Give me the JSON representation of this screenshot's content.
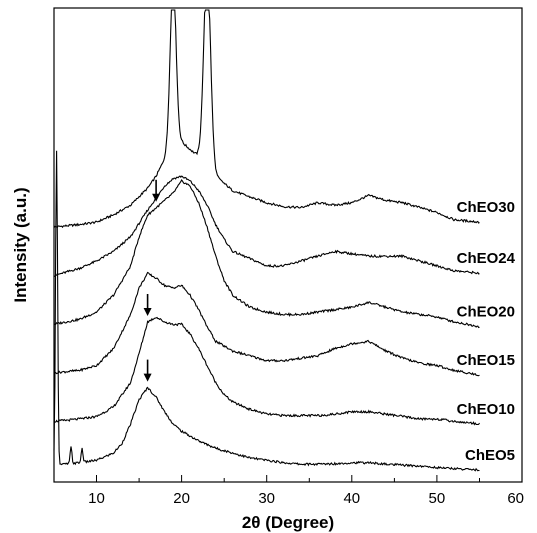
{
  "chart_data": {
    "type": "line",
    "xlabel": "2θ (Degree)",
    "ylabel": "Intensity (a.u.)",
    "xlim": [
      5,
      60
    ],
    "xticks": [
      "10",
      "20",
      "30",
      "40",
      "50",
      "60"
    ],
    "y_ticks_shown": false,
    "grid": false,
    "legend": "none (series labelled on the right of each trace)",
    "series": [
      {
        "name": "ChEO30",
        "offset": 5,
        "peaks": [
          [
            19,
            3.4,
            0.35
          ],
          [
            23,
            4.0,
            0.4
          ]
        ],
        "x": [
          5,
          8,
          10,
          12,
          14,
          16,
          17,
          18,
          19,
          20,
          21,
          22,
          23,
          24,
          26,
          28,
          30,
          32,
          34,
          36,
          38,
          40,
          42,
          44,
          46,
          48,
          50,
          52,
          55
        ],
        "y": [
          0,
          0.05,
          0.1,
          0.25,
          0.45,
          0.8,
          1.05,
          1.4,
          1.7,
          1.75,
          1.6,
          1.45,
          1.35,
          1.05,
          0.75,
          0.62,
          0.5,
          0.42,
          0.4,
          0.5,
          0.45,
          0.5,
          0.65,
          0.55,
          0.5,
          0.4,
          0.3,
          0.15,
          0.1
        ]
      },
      {
        "name": "ChEO24",
        "offset": 4,
        "peaks": [],
        "x": [
          5,
          8,
          10,
          12,
          14,
          16,
          17,
          18,
          19,
          20,
          21,
          22,
          23,
          24,
          25,
          26,
          28,
          30,
          32,
          34,
          36,
          38,
          40,
          42,
          44,
          46,
          48,
          50,
          52,
          55
        ],
        "y": [
          0,
          0.15,
          0.3,
          0.5,
          0.8,
          1.35,
          1.6,
          1.85,
          2.0,
          2.05,
          1.95,
          1.75,
          1.45,
          1.05,
          0.75,
          0.5,
          0.35,
          0.2,
          0.2,
          0.3,
          0.4,
          0.5,
          0.45,
          0.4,
          0.4,
          0.4,
          0.3,
          0.2,
          0.1,
          0.05
        ]
      },
      {
        "name": "ChEO20",
        "offset": 3,
        "peaks": [],
        "x": [
          5,
          8,
          10,
          12,
          14,
          15,
          16,
          17,
          18,
          19,
          20,
          21,
          22,
          23,
          24,
          25,
          26,
          28,
          30,
          32,
          34,
          36,
          38,
          40,
          42,
          44,
          46,
          48,
          50,
          52,
          55
        ],
        "y": [
          0,
          0.1,
          0.25,
          0.6,
          1.2,
          1.8,
          2.25,
          2.4,
          2.55,
          2.7,
          2.95,
          2.85,
          2.5,
          2.0,
          1.4,
          0.9,
          0.6,
          0.35,
          0.25,
          0.2,
          0.2,
          0.25,
          0.3,
          0.35,
          0.45,
          0.35,
          0.25,
          0.2,
          0.15,
          0.05,
          -0.05
        ]
      },
      {
        "name": "ChEO15",
        "offset": 2,
        "peaks": [],
        "x": [
          5,
          8,
          10,
          12,
          14,
          15,
          16,
          17,
          18,
          19,
          20,
          21,
          22,
          23,
          24,
          26,
          28,
          30,
          32,
          34,
          36,
          38,
          40,
          42,
          44,
          46,
          48,
          50,
          52,
          55
        ],
        "y": [
          0,
          0.05,
          0.15,
          0.5,
          1.2,
          1.75,
          2.05,
          1.95,
          1.8,
          1.75,
          1.8,
          1.6,
          1.3,
          0.95,
          0.65,
          0.45,
          0.35,
          0.25,
          0.25,
          0.3,
          0.35,
          0.5,
          0.6,
          0.65,
          0.45,
          0.3,
          0.2,
          0.15,
          0.05,
          -0.05
        ]
      },
      {
        "name": "ChEO10",
        "offset": 1,
        "peaks": [],
        "x": [
          5,
          8,
          10,
          12,
          14,
          15,
          16,
          17,
          18,
          19,
          20,
          21,
          22,
          23,
          24,
          25,
          26,
          28,
          30,
          32,
          34,
          36,
          38,
          40,
          42,
          44,
          46,
          48,
          50,
          52,
          55
        ],
        "y": [
          0,
          0.05,
          0.1,
          0.3,
          0.8,
          1.4,
          2.05,
          2.15,
          2.05,
          2.0,
          2.0,
          1.8,
          1.5,
          1.15,
          0.8,
          0.55,
          0.4,
          0.25,
          0.15,
          0.12,
          0.12,
          0.12,
          0.15,
          0.2,
          0.2,
          0.15,
          0.1,
          0.05,
          0.05,
          0,
          -0.05
        ]
      },
      {
        "name": "ChEO5",
        "offset": 0,
        "peaks": [
          [
            5.3,
            6.5,
            0.12
          ],
          [
            7.0,
            0.35,
            0.1
          ],
          [
            8.3,
            0.3,
            0.1
          ]
        ],
        "x": [
          5,
          8,
          10,
          12,
          13,
          14,
          15,
          16,
          17,
          18,
          19,
          20,
          22,
          24,
          26,
          28,
          30,
          32,
          34,
          36,
          38,
          40,
          42,
          44,
          46,
          48,
          50,
          52,
          55
        ],
        "y": [
          0.1,
          0.15,
          0.2,
          0.35,
          0.55,
          0.95,
          1.45,
          1.7,
          1.5,
          1.2,
          0.95,
          0.8,
          0.6,
          0.45,
          0.35,
          0.25,
          0.2,
          0.15,
          0.12,
          0.12,
          0.13,
          0.15,
          0.15,
          0.12,
          0.1,
          0.08,
          0.05,
          0.03,
          0
        ]
      }
    ],
    "arrows": [
      {
        "series": "ChEO20",
        "x": 17
      },
      {
        "series": "ChEO10",
        "x": 16
      },
      {
        "series": "ChEO5",
        "x": 16
      }
    ]
  }
}
